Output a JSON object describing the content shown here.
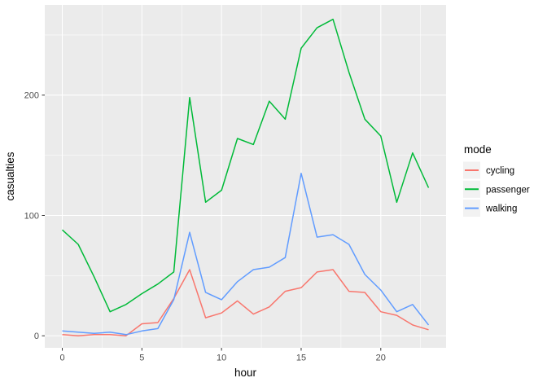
{
  "chart_data": {
    "type": "line",
    "title": "",
    "xlabel": "hour",
    "ylabel": "casualties",
    "x": [
      0,
      1,
      2,
      3,
      4,
      5,
      6,
      7,
      8,
      9,
      10,
      11,
      12,
      13,
      14,
      15,
      16,
      17,
      18,
      19,
      20,
      21,
      22,
      23
    ],
    "series": [
      {
        "name": "cycling",
        "color": "#F8766D",
        "values": [
          1,
          0,
          1,
          1,
          0,
          10,
          11,
          31,
          55,
          15,
          19,
          29,
          18,
          24,
          37,
          40,
          53,
          55,
          37,
          36,
          20,
          17,
          9,
          5
        ]
      },
      {
        "name": "passenger",
        "color": "#00BA38",
        "values": [
          88,
          76,
          49,
          20,
          26,
          35,
          43,
          53,
          198,
          111,
          121,
          164,
          159,
          195,
          180,
          239,
          256,
          263,
          219,
          180,
          166,
          111,
          152,
          123
        ]
      },
      {
        "name": "walking",
        "color": "#619CFF",
        "values": [
          4,
          3,
          2,
          3,
          1,
          4,
          6,
          30,
          86,
          36,
          30,
          45,
          55,
          57,
          65,
          135,
          82,
          84,
          76,
          51,
          38,
          20,
          26,
          9
        ]
      }
    ],
    "legend": {
      "title": "mode",
      "position": "right",
      "labels": [
        "cycling",
        "passenger",
        "walking"
      ]
    },
    "x_ticks": [
      0,
      5,
      10,
      15,
      20
    ],
    "y_ticks": [
      0,
      100,
      200
    ],
    "x_minor": [
      2.5,
      7.5,
      12.5,
      17.5,
      22.5
    ],
    "y_minor": [
      50,
      150,
      250
    ],
    "xlim": [
      -1.1,
      24.1
    ],
    "ylim": [
      -10,
      275
    ],
    "grid": true,
    "panel_bg": "#EBEBEB",
    "grid_color": "#FFFFFF",
    "legend_key_bg": "#F2F2F2",
    "axis_text_color": "#4d4d4d",
    "tick_mark_color": "#333333"
  }
}
